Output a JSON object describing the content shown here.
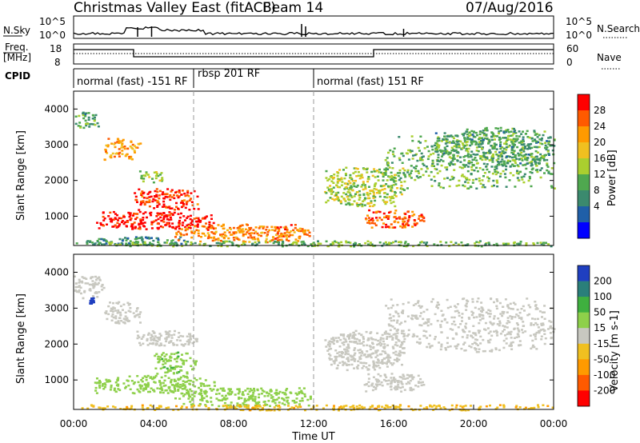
{
  "header": {
    "title": "Christmas Valley East (fitACF)",
    "beam": "Beam 14",
    "date": "07/Aug/2016"
  },
  "top_panels": {
    "nsky_label": "N.Sky",
    "nsky_ticks": [
      "10^5",
      "10^0"
    ],
    "nsearch_label": "N.Search",
    "freq_label_1": "Freq.",
    "freq_label_2": "[MHz]",
    "freq_ticks": [
      "18",
      "8"
    ],
    "nave_label": "Nave",
    "nave_ticks": [
      "60",
      "0"
    ],
    "cpid_label": "CPID",
    "cpid_segments": [
      {
        "label": "normal (fast) -151 RF",
        "start_ut": "00:00",
        "end_ut": "06:00"
      },
      {
        "label": "rbsp 201 RF",
        "start_ut": "06:00",
        "end_ut": "12:00"
      },
      {
        "label": "normal (fast) 151 RF",
        "start_ut": "12:00",
        "end_ut": "24:00"
      }
    ]
  },
  "colors": {
    "power_scale": [
      "#0000ff",
      "#1f5fa8",
      "#3b8a6e",
      "#4fa84f",
      "#aacf2f",
      "#f0c020",
      "#ff9a00",
      "#ff5a00",
      "#ff0000"
    ],
    "velocity_scale": [
      "#ff0000",
      "#ff5a00",
      "#ff9a00",
      "#f0c020",
      "#c8c8c0",
      "#8ed04a",
      "#3fb03f",
      "#2a7f7a",
      "#1f3fc0"
    ]
  },
  "chart_data": [
    {
      "type": "heatmap",
      "panel": "power",
      "ylabel": "Slant Range [km]",
      "colorbar_label": "Power [dB]",
      "colorbar_ticks": [
        "28",
        "24",
        "20",
        "16",
        "12",
        "8",
        "4"
      ],
      "yticks": [
        "4000",
        "3000",
        "2000",
        "1000"
      ],
      "ylim": [
        180,
        4500
      ],
      "xlim": [
        0,
        24
      ],
      "blobs": [
        {
          "t0": 0.0,
          "t1": 1.2,
          "r0": 3500,
          "r1": 3950,
          "value": 10
        },
        {
          "t0": 1.5,
          "t1": 3.3,
          "r0": 2600,
          "r1": 3200,
          "value": 20
        },
        {
          "t0": 3.2,
          "t1": 4.5,
          "r0": 1950,
          "r1": 2300,
          "value": 14
        },
        {
          "t0": 3.0,
          "t1": 6.2,
          "r0": 1200,
          "r1": 1800,
          "value": 26
        },
        {
          "t0": 1.0,
          "t1": 7.0,
          "r0": 650,
          "r1": 1150,
          "value": 28
        },
        {
          "t0": 0.5,
          "t1": 5.5,
          "r0": 200,
          "r1": 450,
          "value": 8
        },
        {
          "t0": 5.0,
          "t1": 11.8,
          "r0": 280,
          "r1": 800,
          "value": 22
        },
        {
          "t0": 0.0,
          "t1": 24.0,
          "r0": 180,
          "r1": 330,
          "value": 12
        },
        {
          "t0": 12.5,
          "t1": 16.5,
          "r0": 1300,
          "r1": 2400,
          "value": 14
        },
        {
          "t0": 14.5,
          "t1": 17.5,
          "r0": 700,
          "r1": 1200,
          "value": 24
        },
        {
          "t0": 15.5,
          "t1": 24.0,
          "r0": 1800,
          "r1": 3300,
          "value": 12
        },
        {
          "t0": 18.0,
          "t1": 24.0,
          "r0": 2400,
          "r1": 3500,
          "value": 10
        }
      ]
    },
    {
      "type": "heatmap",
      "panel": "velocity",
      "ylabel": "Slant Range [km]",
      "colorbar_label": "Velocity [m s-1]",
      "colorbar_ticks": [
        "200",
        "100",
        "50",
        "15",
        "-15",
        "-50",
        "-100",
        "-200"
      ],
      "yticks": [
        "4000",
        "3000",
        "2000",
        "1000"
      ],
      "ylim": [
        180,
        4500
      ],
      "xlim": [
        0,
        24
      ],
      "xlabel": "Time UT",
      "xticks": [
        "00:00",
        "04:00",
        "08:00",
        "12:00",
        "16:00",
        "20:00",
        "00:00"
      ],
      "blobs": [
        {
          "t0": 0.0,
          "t1": 1.5,
          "r0": 3300,
          "r1": 3950,
          "value": 0
        },
        {
          "t0": 0.7,
          "t1": 1.0,
          "r0": 3150,
          "r1": 3350,
          "value": 220
        },
        {
          "t0": 1.5,
          "t1": 3.3,
          "r0": 2600,
          "r1": 3200,
          "value": 0
        },
        {
          "t0": 3.0,
          "t1": 6.2,
          "r0": 1950,
          "r1": 2400,
          "value": 0
        },
        {
          "t0": 4.0,
          "t1": 6.2,
          "r0": 1200,
          "r1": 1800,
          "value": 40
        },
        {
          "t0": 1.0,
          "t1": 7.0,
          "r0": 650,
          "r1": 1150,
          "value": 30
        },
        {
          "t0": 5.0,
          "t1": 11.8,
          "r0": 280,
          "r1": 800,
          "value": 30
        },
        {
          "t0": 0.0,
          "t1": 24.0,
          "r0": 180,
          "r1": 330,
          "value": -40
        },
        {
          "t0": 12.5,
          "t1": 16.5,
          "r0": 1300,
          "r1": 2400,
          "value": 0
        },
        {
          "t0": 14.5,
          "t1": 17.5,
          "r0": 700,
          "r1": 1200,
          "value": 0
        },
        {
          "t0": 15.5,
          "t1": 24.0,
          "r0": 1800,
          "r1": 3300,
          "value": 0
        }
      ]
    }
  ]
}
